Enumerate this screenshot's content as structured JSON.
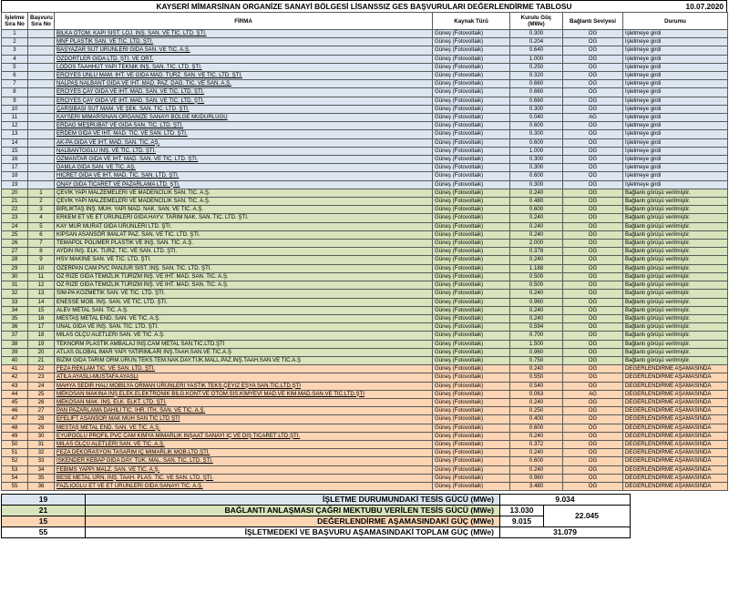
{
  "header": {
    "title": "KAYSERİ MİMARSİNAN ORGANİZE SANAYİ BÖLGESİ LİSANSSIZ GES BAŞVURULARI DEĞERLENDİRME TABLOSU",
    "date": "10.07.2020"
  },
  "columns": {
    "isletme_sira": "İşletme Sıra No",
    "basvuru_sira": "Başvuru Sıra No",
    "firma": "FİRMA",
    "kaynak": "Kaynak Türü",
    "guc": "Kurulu Güç (MWe)",
    "baglanti": "Bağlantı Seviyesi",
    "durum": "Durumu"
  },
  "rows": [
    {
      "n": "1",
      "b": "",
      "f": "BİLKA OTOM. KAPI SİST. LOJ. İNŞ. SAN. VE TİC. LTD. ŞTİ.",
      "k": "Güneş (Fotovoltaik)",
      "g": "0.300",
      "s": "OG",
      "d": "İşletmeye girdi",
      "grp": "s1"
    },
    {
      "n": "2",
      "b": "",
      "f": "MNF PLASTİK SAN. VE TİC. LTD. ŞTİ.",
      "k": "Güneş (Fotovoltaik)",
      "g": "0.204",
      "s": "OG",
      "d": "İşletmeye girdi",
      "grp": "s1"
    },
    {
      "n": "3",
      "b": "",
      "f": "BAŞYAZAR SÜT ÜRÜNLERİ GIDA SAN. VE TİC. A.Ş.",
      "k": "Güneş (Fotovoltaik)",
      "g": "0.640",
      "s": "OG",
      "d": "İşletmeye girdi",
      "grp": "s1"
    },
    {
      "n": "4",
      "b": "",
      "f": "ÖZDÖRTLER GIDA LTD. ŞTİ. VE ORT.",
      "k": "Güneş (Fotovoltaik)",
      "g": "1.000",
      "s": "OG",
      "d": "İşletmeye girdi",
      "grp": "s1"
    },
    {
      "n": "5",
      "b": "",
      "f": "LODOS TAAHHÜT YAPI TEKNİK İNŞ. SAN. TİC. LTD. ŞTİ.",
      "k": "Güneş (Fotovoltaik)",
      "g": "0.250",
      "s": "OG",
      "d": "İşletmeye girdi",
      "grp": "s1"
    },
    {
      "n": "6",
      "b": "",
      "f": "ERCİYES UNLU MAM. İHT. VE GIDA MAD. TURZ. SAN. VE TİC. LTD. ŞTİ.",
      "k": "Güneş (Fotovoltaik)",
      "g": "0.320",
      "s": "OG",
      "d": "İşletmeye girdi",
      "grp": "s1"
    },
    {
      "n": "7",
      "b": "",
      "f": "NALPAŞ NALBANT GIDA VE İHT. MAD. PAZ. DAĞ. TİC. VE SAN. A.Ş.",
      "k": "Güneş (Fotovoltaik)",
      "g": "0.660",
      "s": "OG",
      "d": "İşletmeye girdi",
      "grp": "s1"
    },
    {
      "n": "8",
      "b": "",
      "f": "ERCİYES ÇAY GIDA VE İHT. MAD. SAN. VE TİC. LTD. ŞTİ.",
      "k": "Güneş (Fotovoltaik)",
      "g": "0.660",
      "s": "OG",
      "d": "İşletmeye girdi",
      "grp": "s1"
    },
    {
      "n": "9",
      "b": "",
      "f": "ERCİYES ÇAY GIDA VE İHT. MAD. SAN. VE TİC. LTD. ŞTİ.",
      "k": "Güneş (Fotovoltaik)",
      "g": "0.660",
      "s": "OG",
      "d": "İşletmeye girdi",
      "grp": "s1"
    },
    {
      "n": "10",
      "b": "",
      "f": "ÇARŞIBAŞI SÜT MAM. VE ŞEK. SAN. TİC. LTD. ŞTİ.",
      "k": "Güneş (Fotovoltaik)",
      "g": "0.300",
      "s": "OG",
      "d": "İşletmeye girdi",
      "grp": "s1"
    },
    {
      "n": "11",
      "b": "",
      "f": "KAYSERİ MİMARSİNAN ORGANİZE SANAYİ BÖLGE MÜDÜRLÜĞÜ",
      "k": "Güneş (Fotovoltaik)",
      "g": "0.040",
      "s": "AG",
      "d": "İşletmeye girdi",
      "grp": "s1"
    },
    {
      "n": "12",
      "b": "",
      "f": "ERDAĞ MEŞRUBAT VE GIDA SAN. TİC. LTD. ŞTİ.",
      "k": "Güneş (Fotovoltaik)",
      "g": "0.600",
      "s": "OG",
      "d": "İşletmeye girdi",
      "grp": "s1"
    },
    {
      "n": "13",
      "b": "",
      "f": "ERDEM GIDA VE İHT. MAD. TİC. VE SAN. LTD. ŞTİ.",
      "k": "Güneş (Fotovoltaik)",
      "g": "0.300",
      "s": "OG",
      "d": "İşletmeye girdi",
      "grp": "s1"
    },
    {
      "n": "14",
      "b": "",
      "f": "AK-PA GIDA VE İHT. MAD. SAN. TİC. AŞ.",
      "k": "Güneş (Fotovoltaik)",
      "g": "0.600",
      "s": "OG",
      "d": "İşletmeye girdi",
      "grp": "s1"
    },
    {
      "n": "15",
      "b": "",
      "f": "NALBANTOĞLU İNŞ. VE TİC. LTD. ŞTİ.",
      "k": "Güneş (Fotovoltaik)",
      "g": "1.000",
      "s": "OG",
      "d": "İşletmeye girdi",
      "grp": "s1"
    },
    {
      "n": "16",
      "b": "",
      "f": "ÖZMANTAR GIDA VE İHT. MAD. SAN. VE TİC. LTD. ŞTİ.",
      "k": "Güneş (Fotovoltaik)",
      "g": "0.300",
      "s": "OG",
      "d": "İşletmeye girdi",
      "grp": "s1"
    },
    {
      "n": "17",
      "b": "",
      "f": "DAMLA GIDA SAN. VE TİC. AŞ.",
      "k": "Güneş (Fotovoltaik)",
      "g": "0.300",
      "s": "OG",
      "d": "İşletmeye girdi",
      "grp": "s1"
    },
    {
      "n": "18",
      "b": "",
      "f": "HİCRET GIDA VE İHT. MAD. TİC. SAN. LTD. ŞTİ.",
      "k": "Güneş (Fotovoltaik)",
      "g": "0.600",
      "s": "OG",
      "d": "İşletmeye girdi",
      "grp": "s1"
    },
    {
      "n": "19",
      "b": "",
      "f": "ONAY GIDA TİCARET VE PAZARLAMA LTD. ŞTİ.",
      "k": "Güneş (Fotovoltaik)",
      "g": "0.300",
      "s": "OG",
      "d": "İşletmeye girdi",
      "grp": "s1"
    },
    {
      "n": "20",
      "b": "1",
      "f": "ÇEVİK YAPI MALZEMELERİ VE MADENCİLİK SAN. TİC. A.Ş.",
      "k": "Güneş (Fotovoltaik)",
      "g": "0.240",
      "s": "OG",
      "d": "Bağlantı görüşü verilmiştir.",
      "grp": "s2"
    },
    {
      "n": "21",
      "b": "2",
      "f": "ÇEVİK YAPI MALZEMELERİ VE MADENCİLİK SAN. TİC. A.Ş.",
      "k": "Güneş (Fotovoltaik)",
      "g": "0.480",
      "s": "OG",
      "d": "Bağlantı görüşü verilmiştir.",
      "grp": "s2"
    },
    {
      "n": "22",
      "b": "3",
      "f": "BİRLİKTAŞ İNŞ. MÜH. YAPI MAD. NAK. SAN. VE TİC. A.Ş.",
      "k": "Güneş (Fotovoltaik)",
      "g": "0.600",
      "s": "OG",
      "d": "Bağlantı görüşü verilmiştir.",
      "grp": "s2"
    },
    {
      "n": "23",
      "b": "4",
      "f": "ERKEM ET VE ET ÜRÜNLERİ GIDA HAYV. TARIM NAK. SAN. TİC. LTD. ŞTİ.",
      "k": "Güneş (Fotovoltaik)",
      "g": "0.240",
      "s": "OG",
      "d": "Bağlantı görüşü verilmiştir.",
      "grp": "s2"
    },
    {
      "n": "24",
      "b": "5",
      "f": "KAY MUR MURAT GIDA ÜRÜNLERİ LTD. ŞTİ.",
      "k": "Güneş (Fotovoltaik)",
      "g": "0.240",
      "s": "OG",
      "d": "Bağlantı görüşü verilmiştir.",
      "grp": "s2"
    },
    {
      "n": "25",
      "b": "6",
      "f": "KİPSAN ASANSÖR İMALAT PAZ. SAN. VE TİC. LTD. ŞTİ.",
      "k": "Güneş (Fotovoltaik)",
      "g": "0.240",
      "s": "OG",
      "d": "Bağlantı görüşü verilmiştir.",
      "grp": "s2"
    },
    {
      "n": "26",
      "b": "7",
      "f": "TEMAPOL POLİMER PLASTİK VE İNŞ. SAN. TİC. A.Ş.",
      "k": "Güneş (Fotovoltaik)",
      "g": "2.000",
      "s": "OG",
      "d": "Bağlantı görüşü verilmiştir.",
      "grp": "s2"
    },
    {
      "n": "27",
      "b": "8",
      "f": "AYDIN İNŞ. ELK. TURZ. TİC. VE SAN. LTD. ŞTİ.",
      "k": "Güneş (Fotovoltaik)",
      "g": "0.378",
      "s": "OG",
      "d": "Bağlantı görüşü verilmiştir.",
      "grp": "s2"
    },
    {
      "n": "28",
      "b": "9",
      "f": "HSV MAKİNE SAN. VE TİC. LTD. ŞTİ.",
      "k": "Güneş (Fotovoltaik)",
      "g": "0.240",
      "s": "OG",
      "d": "Bağlantı görüşü verilmiştir.",
      "grp": "s2"
    },
    {
      "n": "29",
      "b": "10",
      "f": "ÖZERPAN CAM PVC PANJUR SİST. İNŞ. SAN. TİC. LTD. ŞTİ.",
      "k": "Güneş (Fotovoltaik)",
      "g": "1.188",
      "s": "OG",
      "d": "Bağlantı görüşü verilmiştir.",
      "grp": "s2"
    },
    {
      "n": "30",
      "b": "11",
      "f": "ÖZ RİZE GIDA TEMİZLİK TURİZM İNŞ. VE İHT. MAD. SAN. TİC. A.Ş.",
      "k": "Güneş (Fotovoltaik)",
      "g": "0.500",
      "s": "OG",
      "d": "Bağlantı görüşü verilmiştir.",
      "grp": "s2"
    },
    {
      "n": "31",
      "b": "12",
      "f": "ÖZ RİZE GIDA TEMİZLİK TURİZM İNŞ. VE İHT. MAD. SAN. TİC. A.Ş.",
      "k": "Güneş (Fotovoltaik)",
      "g": "0.500",
      "s": "OG",
      "d": "Bağlantı görüşü verilmiştir.",
      "grp": "s2"
    },
    {
      "n": "32",
      "b": "13",
      "f": "SİM-PA KOZMETİK SAN. VE TİC. LTD. ŞTİ.",
      "k": "Güneş (Fotovoltaik)",
      "g": "0.240",
      "s": "OG",
      "d": "Bağlantı görüşü verilmiştir.",
      "grp": "s2"
    },
    {
      "n": "33",
      "b": "14",
      "f": "ENESSE MOB. İNŞ. SAN. VE TİC. LTD. ŞTİ.",
      "k": "Güneş (Fotovoltaik)",
      "g": "0.960",
      "s": "OG",
      "d": "Bağlantı görüşü verilmiştir.",
      "grp": "s2"
    },
    {
      "n": "34",
      "b": "15",
      "f": "ALEV METAL SAN. TİC. A.Ş.",
      "k": "Güneş (Fotovoltaik)",
      "g": "0.240",
      "s": "OG",
      "d": "Bağlantı görüşü verilmiştir.",
      "grp": "s2"
    },
    {
      "n": "35",
      "b": "16",
      "f": "MESTAŞ METAL END. SAN. VE TİC. A.Ş.",
      "k": "Güneş (Fotovoltaik)",
      "g": "0.240",
      "s": "OG",
      "d": "Bağlantı görüşü verilmiştir.",
      "grp": "s2"
    },
    {
      "n": "36",
      "b": "17",
      "f": "ÜNAL GIDA VE İNŞ. SAN. TİC. LTD. ŞTİ.",
      "k": "Güneş (Fotovoltaik)",
      "g": "0.594",
      "s": "OG",
      "d": "Bağlantı görüşü verilmiştir.",
      "grp": "s2"
    },
    {
      "n": "37",
      "b": "18",
      "f": "MİLAS ÖLÇÜ ALETLERİ SAN. VE TİC. A.Ş.",
      "k": "Güneş (Fotovoltaik)",
      "g": "0.700",
      "s": "OG",
      "d": "Bağlantı görüşü verilmiştir.",
      "grp": "s2"
    },
    {
      "n": "38",
      "b": "19",
      "f": "TEKNORM PLASTİK AMBALAJ İNŞ.CAM METAL SAN.TİC.LTD.ŞTİ",
      "k": "Güneş (Fotovoltaik)",
      "g": "1.500",
      "s": "OG",
      "d": "Bağlantı görüşü verilmiştir.",
      "grp": "s2"
    },
    {
      "n": "39",
      "b": "20",
      "f": "ATLAS GLOBAL İMAR YAPI YATIRIMLARI İNŞ.TAAH.SAN.VE TİC.A.Ş",
      "k": "Güneş (Fotovoltaik)",
      "g": "0.960",
      "s": "OG",
      "d": "Bağlantı görüşü verilmiştir.",
      "grp": "s2"
    },
    {
      "n": "40",
      "b": "21",
      "f": "BİZİM GIDA TARIM ORM.ÜRÜN.TEKS.TEM.NAK.DAY.TÜK.MALL.PAZ.İNŞ.TAAH.SAN.VE TİC.A.Ş",
      "k": "Güneş (Fotovoltaik)",
      "g": "0.750",
      "s": "OG",
      "d": "Bağlantı görüşü verilmiştir.",
      "grp": "s2"
    },
    {
      "n": "41",
      "b": "22",
      "f": "FEZA REKLAM TİC. VE SAN. LTD. ŞTİ.",
      "k": "Güneş (Fotovoltaik)",
      "g": "0.240",
      "s": "OG",
      "d": "DEĞERLENDİRME AŞAMASINDA",
      "grp": "s3"
    },
    {
      "n": "42",
      "b": "23",
      "f": "ATİLA AYASLI-MUSTAFA AYASLI",
      "k": "Güneş (Fotovoltaik)",
      "g": "0.550",
      "s": "OG",
      "d": "DEĞERLENDİRME AŞAMASINDA",
      "grp": "s3"
    },
    {
      "n": "43",
      "b": "24",
      "f": "MAHYA SEDİR HALI MOBİLYA ORMAN ÜRÜNLERİ YASTIK TEKS.ÇEYİZ EŞYA SAN.TİC.LTD.ŞTİ",
      "k": "Güneş (Fotovoltaik)",
      "g": "0.540",
      "s": "OG",
      "d": "DEĞERLENDİRME AŞAMASINDA",
      "grp": "s3"
    },
    {
      "n": "44",
      "b": "25",
      "f": "MEKOSAN MAKİNA İNŞ.ELEK.ELEKTRONİK BİLG.KONT.VE OTOM.SİS.KİMYEVİ MAD.VE KİM.MAD.SAN.VE TİC.LTD.ŞTİ",
      "k": "Güneş (Fotovoltaik)",
      "g": "0.063",
      "s": "AG",
      "d": "DEĞERLENDİRME AŞAMASINDA",
      "grp": "s3"
    },
    {
      "n": "45",
      "b": "26",
      "f": "MEKOSAN MAK. İNŞ. ELK. ELKT. LTD. ŞTİ.",
      "k": "Güneş (Fotovoltaik)",
      "g": "0.240",
      "s": "OG",
      "d": "DEĞERLENDİRME AŞAMASINDA",
      "grp": "s3"
    },
    {
      "n": "46",
      "b": "27",
      "f": "PAN PAZARLAMA DAHİLİ TİC. İHR. İTH. SAN. VE TİC. A.Ş.",
      "k": "Güneş (Fotovoltaik)",
      "g": "0.250",
      "s": "OG",
      "d": "DEĞERLENDİRME AŞAMASINDA",
      "grp": "s3"
    },
    {
      "n": "47",
      "b": "28",
      "f": "EFELİFT ASANSÖR MAK MÜH SAN TİC LTD ŞTİ",
      "k": "Güneş (Fotovoltaik)",
      "g": "0.400",
      "s": "OG",
      "d": "DEĞERLENDİRME AŞAMASINDA",
      "grp": "s3"
    },
    {
      "n": "48",
      "b": "29",
      "f": "MESTAŞ METAL END. SAN. VE TİC. A.Ş.",
      "k": "Güneş (Fotovoltaik)",
      "g": "0.600",
      "s": "OG",
      "d": "DEĞERLENDİRME AŞAMASINDA",
      "grp": "s3"
    },
    {
      "n": "49",
      "b": "30",
      "f": "EYÜPOĞLU PROFİL PVC CAM KİMYA MİMARLIK İNŞAAT SANAYİ İÇ VE DIŞ TİCARET LTD.ŞTİ.",
      "k": "Güneş (Fotovoltaik)",
      "g": "0.240",
      "s": "OG",
      "d": "DEĞERLENDİRME AŞAMASINDA",
      "grp": "s3"
    },
    {
      "n": "50",
      "b": "31",
      "f": "MİLAS ÖLÇÜ ALETLERİ SAN. VE TİC. A.Ş.",
      "k": "Güneş (Fotovoltaik)",
      "g": "0.372",
      "s": "OG",
      "d": "DEĞERLENDİRME AŞAMASINDA",
      "grp": "s3"
    },
    {
      "n": "51",
      "b": "32",
      "f": "FEZA DEKORASYON TASARIM İÇ MİMARLIK MOB.LTD.ŞTİ.",
      "k": "Güneş (Fotovoltaik)",
      "g": "0.240",
      "s": "OG",
      "d": "DEĞERLENDİRME AŞAMASINDA",
      "grp": "s3"
    },
    {
      "n": "52",
      "b": "33",
      "f": "İSKENDER KEBAP GIDA DAY. TÜK. MAL. SAN. TİC. LTD. ŞTİ.",
      "k": "Güneş (Fotovoltaik)",
      "g": "0.600",
      "s": "OG",
      "d": "DEĞERLENDİRME AŞAMASINDA",
      "grp": "s3"
    },
    {
      "n": "53",
      "b": "34",
      "f": "FEBİMS YAPPI MALZ. SAN. VE TİC. A.Ş.",
      "k": "Güneş (Fotovoltaik)",
      "g": "0.240",
      "s": "OG",
      "d": "DEĞERLENDİRME AŞAMASINDA",
      "grp": "s3"
    },
    {
      "n": "54",
      "b": "35",
      "f": "BESE METAL ÜRN. İNŞ. TAAH. PLAS. TİC. VE SAN. LTD. ŞTİ.",
      "k": "Güneş (Fotovoltaik)",
      "g": "0.960",
      "s": "OG",
      "d": "DEĞERLENDİRME AŞAMASINDA",
      "grp": "s3"
    },
    {
      "n": "55",
      "b": "36",
      "f": "FAZLIOĞLU ET VE ET ÜRÜNLERİ GIDA SANAYİ TİC. A.Ş.",
      "k": "Güneş (Fotovoltaik)",
      "g": "3.480",
      "s": "OG",
      "d": "DEĞERLENDİRME AŞAMASINDA",
      "grp": "s3"
    }
  ],
  "summary": {
    "r1": {
      "count": "19",
      "label": "İŞLETME DURUMUNDAKİ TESİS GÜCÜ (MWe)",
      "value": "9.034"
    },
    "r2": {
      "count": "21",
      "label": "BAĞLANTI ANLAŞMASI ÇAĞRI MEKTUBU VERİLEN TESİS GÜCÜ (MWe)",
      "value": "13.030"
    },
    "r3": {
      "count": "15",
      "label": "DEĞERLENDİRME AŞAMASINDAKİ GÜÇ (MWe)",
      "value": "9.015"
    },
    "r23_total": "22.045",
    "r4": {
      "count": "55",
      "label": "İŞLETMEDEKİ VE BAŞVURU AŞAMASINDAKİ TOPLAM GÜÇ (MWe)",
      "value": "31.079"
    }
  },
  "colors": {
    "operating": "#dce6f1",
    "connection": "#d8e4bc",
    "evaluation": "#fcd5b4"
  }
}
